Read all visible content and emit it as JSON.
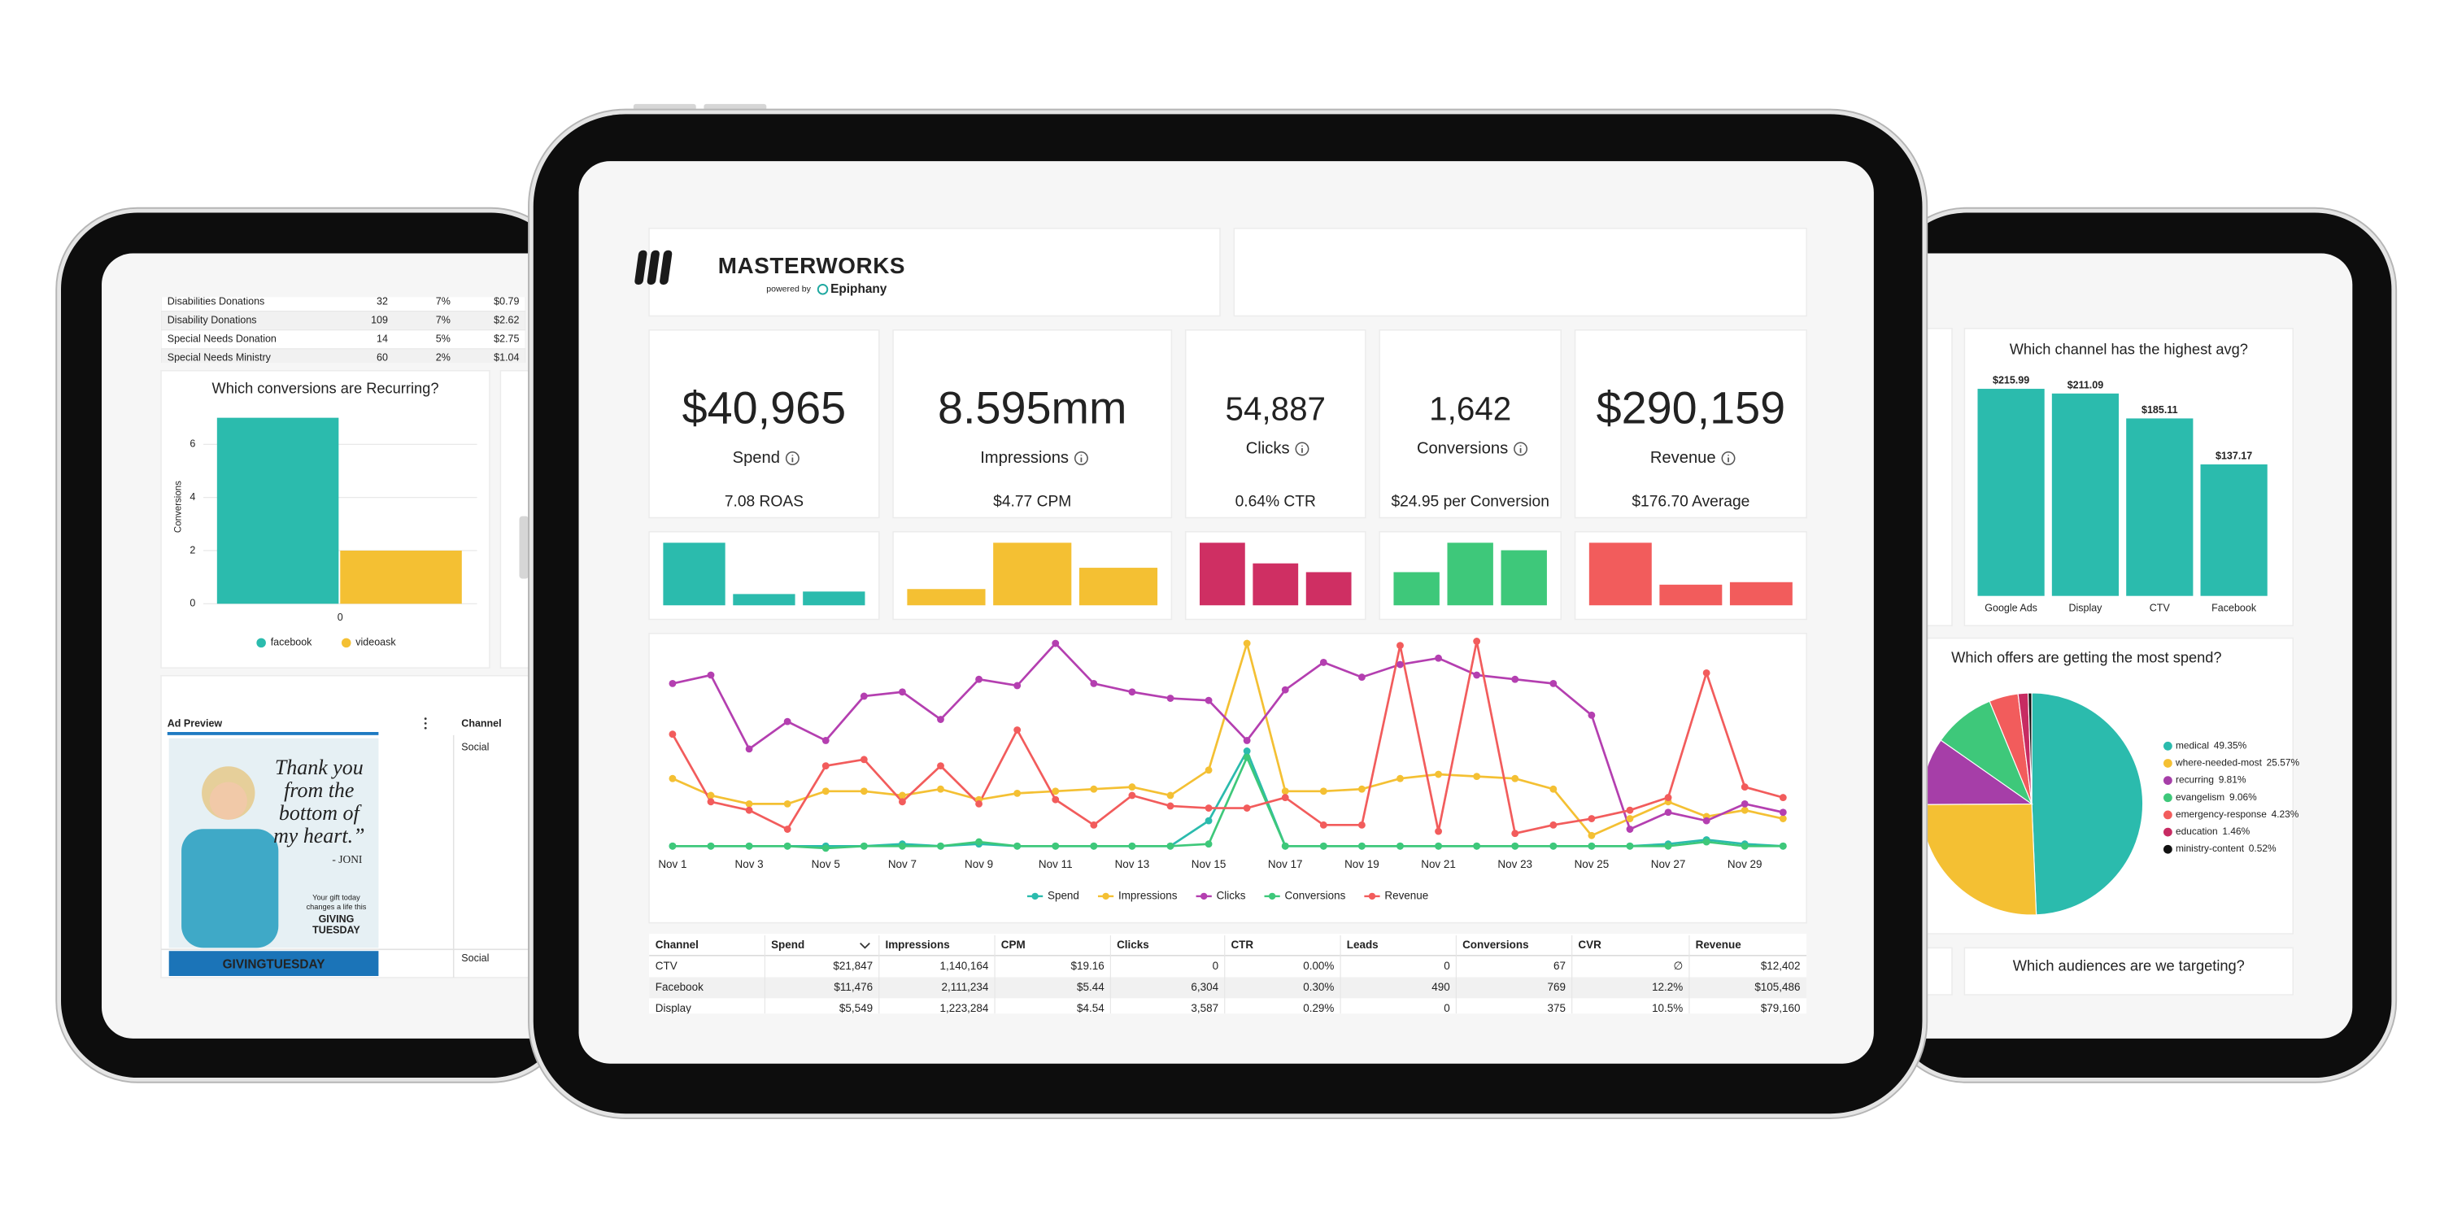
{
  "left_panel": {
    "table": {
      "rows": [
        [
          "Disabilities Donations",
          "32",
          "7%",
          "$0.79"
        ],
        [
          "Disability Donations",
          "109",
          "7%",
          "$2.62"
        ],
        [
          "Special Needs Donation",
          "14",
          "5%",
          "$2.75"
        ],
        [
          "Special Needs Ministry",
          "60",
          "2%",
          "$1.04"
        ]
      ]
    },
    "ad_preview": {
      "title": "Ad Preview",
      "column": "Channel",
      "channels": [
        "Social",
        "Social"
      ],
      "headline": [
        "Thank you",
        "from the",
        "bottom of",
        "my heart.”"
      ],
      "signature": "- JONI",
      "tagline": [
        "Your gift today",
        "changes a life this"
      ],
      "badge": [
        "GIVING",
        "TUESDAY"
      ],
      "banner": "GIVINGTUESDAY"
    }
  },
  "dashboard": {
    "logo": {
      "brand": "MASTERWORKS",
      "powered_by": "powered by",
      "partner": "Epiphany"
    },
    "kpis": [
      {
        "value": "$40,965",
        "label": "Spend",
        "sub": "7.08 ROAS"
      },
      {
        "value": "8.595mm",
        "label": "Impressions",
        "sub": "$4.77 CPM"
      },
      {
        "value": "54,887",
        "label": "Clicks",
        "sub": "0.64% CTR"
      },
      {
        "value": "1,642",
        "label": "Conversions",
        "sub": "$24.95 per Conversion"
      },
      {
        "value": "$290,159",
        "label": "Revenue",
        "sub": "$176.70 Average"
      }
    ],
    "table": {
      "header": [
        "Channel",
        "Spend",
        "Impressions",
        "CPM",
        "Clicks",
        "CTR",
        "Leads",
        "Conversions",
        "CVR",
        "Revenue"
      ],
      "rows": [
        [
          "CTV",
          "$21,847",
          "1,140,164",
          "$19.16",
          "0",
          "0.00%",
          "0",
          "67",
          "∅",
          "$12,402"
        ],
        [
          "Facebook",
          "$11,476",
          "2,111,234",
          "$5.44",
          "6,304",
          "0.30%",
          "490",
          "769",
          "12.2%",
          "$105,486"
        ],
        [
          "Display",
          "$5,549",
          "1,223,284",
          "$4.54",
          "3,587",
          "0.29%",
          "0",
          "375",
          "10.5%",
          "$79,160"
        ]
      ]
    }
  },
  "right_panel": {
    "audiences_title": "Which audiences are we targeting?"
  },
  "chart_data": [
    {
      "type": "bar",
      "title": "Which conversions are Recurring?",
      "y_label": "Conversions",
      "categories": [
        "0"
      ],
      "series": [
        {
          "name": "facebook",
          "color": "#2bbbad",
          "values": [
            7
          ]
        },
        {
          "name": "videoask",
          "color": "#f4c033",
          "values": [
            2
          ]
        }
      ],
      "ylim": [
        0,
        7.3
      ],
      "yticks": [
        0,
        2,
        4,
        6
      ],
      "grid": true
    },
    {
      "type": "minibar",
      "values": [
        100,
        18,
        22
      ],
      "color": "#2bbbad",
      "ylim": [
        0,
        100
      ]
    },
    {
      "type": "minibar",
      "values": [
        26,
        100,
        60
      ],
      "color": "#f4c033",
      "ylim": [
        0,
        100
      ]
    },
    {
      "type": "minibar",
      "values": [
        100,
        67,
        53
      ],
      "color": "#cf2f63",
      "ylim": [
        0,
        100
      ]
    },
    {
      "type": "minibar",
      "values": [
        53,
        100,
        88
      ],
      "color": "#3ec87a",
      "ylim": [
        0,
        100
      ]
    },
    {
      "type": "minibar",
      "values": [
        100,
        33,
        37
      ],
      "color": "#f25c5c",
      "ylim": [
        0,
        100
      ]
    },
    {
      "type": "line",
      "x": [
        "Nov 1",
        null,
        "Nov 3",
        null,
        "Nov 5",
        null,
        "Nov 7",
        null,
        "Nov 9",
        null,
        "Nov 11",
        null,
        "Nov 13",
        null,
        "Nov 15",
        null,
        "Nov 17",
        null,
        "Nov 19",
        null,
        "Nov 21",
        null,
        "Nov 23",
        null,
        "Nov 25",
        null,
        "Nov 27",
        null,
        "Nov 29",
        null
      ],
      "ylim": [
        0,
        100
      ],
      "series": [
        {
          "name": "Spend",
          "color": "#2bbbad",
          "values": [
            3,
            3,
            3,
            3,
            3,
            3,
            4,
            3,
            4,
            3,
            3,
            3,
            3,
            3,
            15,
            48,
            3,
            3,
            3,
            3,
            3,
            3,
            3,
            3,
            3,
            3,
            4,
            6,
            4,
            3
          ]
        },
        {
          "name": "Impressions",
          "color": "#f4c033",
          "values": [
            35,
            27,
            23,
            23,
            29,
            29,
            27,
            30,
            25,
            28,
            29,
            30,
            31,
            27,
            39,
            99,
            29,
            29,
            30,
            35,
            37,
            36,
            35,
            30,
            8,
            16,
            24,
            17,
            20,
            16
          ]
        },
        {
          "name": "Clicks",
          "color": "#b43fb0",
          "values": [
            80,
            84,
            49,
            62,
            53,
            74,
            76,
            63,
            82,
            79,
            99,
            80,
            76,
            73,
            72,
            53,
            77,
            90,
            83,
            89,
            92,
            84,
            82,
            80,
            65,
            11,
            19,
            15,
            23,
            19
          ]
        },
        {
          "name": "Conversions",
          "color": "#3ec87a",
          "values": [
            3,
            3,
            3,
            3,
            2,
            3,
            3,
            3,
            5,
            3,
            3,
            3,
            3,
            3,
            4,
            45,
            3,
            3,
            3,
            3,
            3,
            3,
            3,
            3,
            3,
            3,
            3,
            5,
            3,
            3
          ]
        },
        {
          "name": "Revenue",
          "color": "#f25c5c",
          "values": [
            56,
            24,
            20,
            11,
            41,
            44,
            24,
            41,
            23,
            58,
            25,
            13,
            27,
            22,
            21,
            21,
            26,
            13,
            13,
            98,
            10,
            100,
            9,
            13,
            16,
            20,
            26,
            85,
            31,
            26
          ]
        }
      ]
    },
    {
      "type": "bar",
      "title": "Which channel has the highest avg?",
      "categories": [
        "Google Ads",
        "Display",
        "CTV",
        "Facebook"
      ],
      "values": [
        215.99,
        211.09,
        185.11,
        137.17
      ],
      "value_labels": [
        "$215.99",
        "$211.09",
        "$185.11",
        "$137.17"
      ],
      "color": "#2bbbad",
      "ylim": [
        0,
        230
      ]
    },
    {
      "type": "pie",
      "title": "Which offers are getting the most spend?",
      "categories": [
        "medical",
        "where-needed-most",
        "recurring",
        "evangelism",
        "emergency-response",
        "education",
        "ministry-content"
      ],
      "values": [
        49.35,
        25.57,
        9.81,
        9.06,
        4.23,
        1.46,
        0.52
      ],
      "value_labels": [
        "49.35%",
        "25.57%",
        "9.81%",
        "9.06%",
        "4.23%",
        "1.46%",
        "0.52%"
      ],
      "colors": [
        "#2bbbad",
        "#f4c033",
        "#a63ea8",
        "#3ec87a",
        "#f25c5c",
        "#c72b62",
        "#111111"
      ]
    }
  ]
}
